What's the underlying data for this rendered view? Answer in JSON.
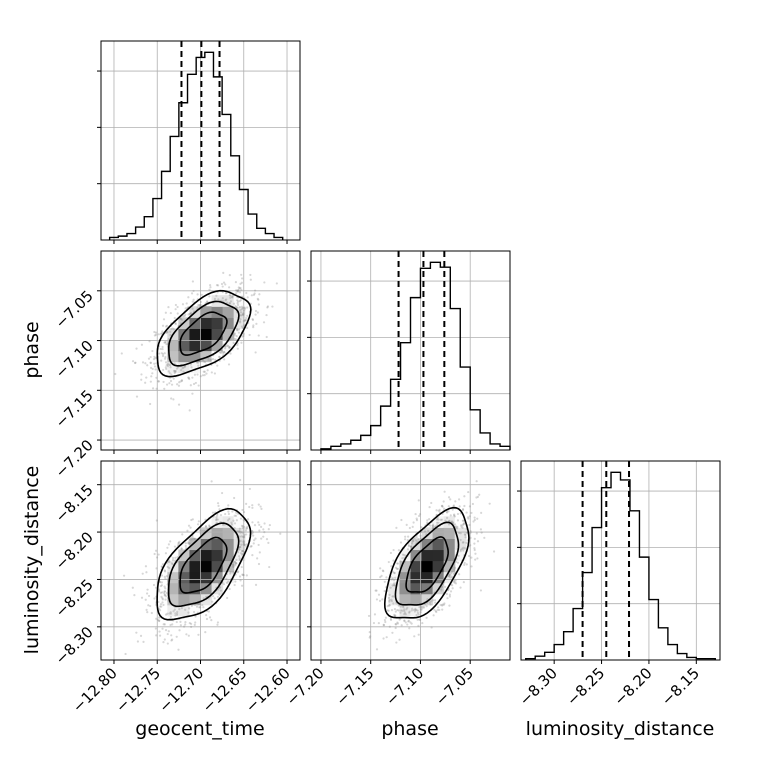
{
  "chart_data": {
    "type": "corner",
    "parameters": [
      "geocent_time",
      "phase",
      "luminosity_distance"
    ],
    "ranges": {
      "geocent_time": [
        -12.815,
        -12.585
      ],
      "phase": [
        -7.21,
        -7.01
      ],
      "luminosity_distance": [
        -8.335,
        -8.125
      ]
    },
    "ticks": {
      "geocent_time": [
        -12.8,
        -12.75,
        -12.7,
        -12.65,
        -12.6
      ],
      "phase": [
        -7.2,
        -7.15,
        -7.1,
        -7.05
      ],
      "luminosity_distance": [
        -8.3,
        -8.25,
        -8.2,
        -8.15
      ]
    },
    "tick_labels": {
      "geocent_time": [
        "−12.80",
        "−12.75",
        "−12.70",
        "−12.65",
        "−12.60"
      ],
      "phase": [
        "−7.20",
        "−7.15",
        "−7.10",
        "−7.05"
      ],
      "luminosity_distance": [
        "−8.30",
        "−8.25",
        "−8.20",
        "−8.15"
      ]
    },
    "quantiles": {
      "geocent_time": [
        -12.722,
        -12.699,
        -12.678
      ],
      "phase": [
        -7.122,
        -7.097,
        -7.076
      ],
      "luminosity_distance": [
        -8.27,
        -8.245,
        -8.221
      ]
    },
    "marginals": {
      "geocent_time": {
        "edges": [
          -12.805,
          -12.795,
          -12.785,
          -12.775,
          -12.765,
          -12.755,
          -12.745,
          -12.735,
          -12.725,
          -12.715,
          -12.705,
          -12.695,
          -12.685,
          -12.675,
          -12.665,
          -12.655,
          -12.645,
          -12.635,
          -12.625,
          -12.615,
          -12.605
        ],
        "counts": [
          2,
          3,
          5,
          10,
          18,
          32,
          53,
          80,
          106,
          128,
          141,
          145,
          126,
          97,
          65,
          39,
          20,
          9,
          5,
          2
        ]
      },
      "phase": {
        "edges": [
          -7.2,
          -7.19,
          -7.18,
          -7.17,
          -7.16,
          -7.15,
          -7.14,
          -7.13,
          -7.12,
          -7.11,
          -7.1,
          -7.09,
          -7.08,
          -7.07,
          -7.06,
          -7.05,
          -7.04,
          -7.03,
          -7.02,
          -7.01
        ],
        "counts": [
          1,
          3,
          5,
          8,
          12,
          20,
          36,
          58,
          88,
          125,
          149,
          154,
          150,
          116,
          68,
          33,
          14,
          5,
          3
        ]
      },
      "luminosity_distance": {
        "edges": [
          -8.33,
          -8.32,
          -8.31,
          -8.3,
          -8.29,
          -8.28,
          -8.27,
          -8.26,
          -8.25,
          -8.24,
          -8.23,
          -8.22,
          -8.21,
          -8.2,
          -8.19,
          -8.18,
          -8.17,
          -8.16,
          -8.15,
          -8.14,
          -8.13
        ],
        "counts": [
          1,
          3,
          6,
          12,
          22,
          40,
          68,
          103,
          134,
          146,
          140,
          116,
          80,
          47,
          25,
          12,
          5,
          2,
          1,
          1
        ]
      }
    },
    "correlations": [
      {
        "x": "geocent_time",
        "y": "phase",
        "rho": 0.55
      },
      {
        "x": "geocent_time",
        "y": "luminosity_distance",
        "rho": 0.6
      },
      {
        "x": "phase",
        "y": "luminosity_distance",
        "rho": 0.6
      }
    ],
    "centers": {
      "geocent_time": -12.697,
      "phase": -7.093,
      "luminosity_distance": -8.236
    },
    "sigmas": {
      "geocent_time": 0.027,
      "phase": 0.021,
      "luminosity_distance": 0.029
    },
    "contour_levels_sigma": [
      1,
      1.5,
      2
    ],
    "grid": true,
    "colors": {
      "scatter": "#8c8c8c",
      "density": "#000000",
      "lines": "#000000"
    }
  }
}
